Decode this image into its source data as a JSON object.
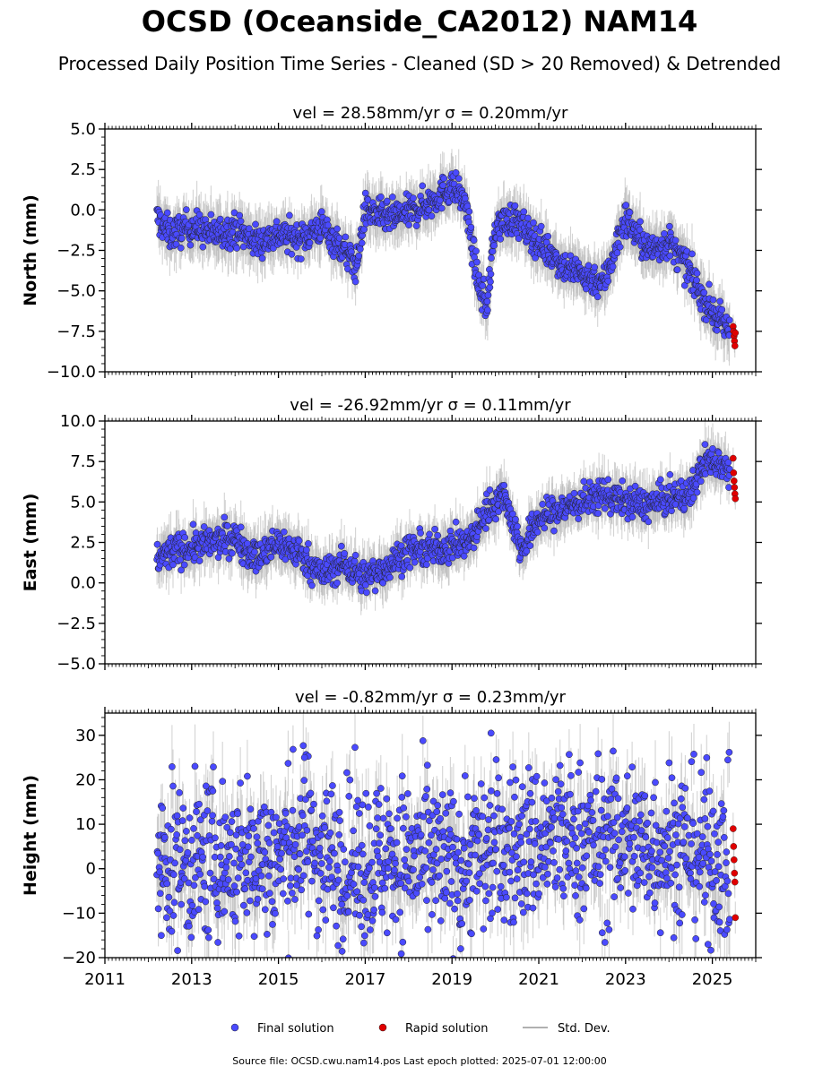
{
  "title": "OCSD (Oceanside_CA2012) NAM14",
  "subtitle": "Processed Daily Position Time Series - Cleaned (SD > 20 Removed) & Detrended",
  "footer": "Source file: OCSD.cwu.nam14.pos  Last epoch plotted: 2025-07-01 12:00:00",
  "colors": {
    "final": "#4a4aff",
    "rapid": "#e00000",
    "stddev": "#b0b0b0",
    "marker_edge": "#222222"
  },
  "legend": [
    {
      "label": "Final solution",
      "marker": "circle",
      "color": "#4a4aff"
    },
    {
      "label": "Rapid solution",
      "marker": "circle",
      "color": "#e00000"
    },
    {
      "label": "Std. Dev.",
      "marker": "line",
      "color": "#b0b0b0"
    }
  ],
  "chart_data": [
    {
      "type": "scatter",
      "panel": "north",
      "title_vel": "vel = 28.58mm/yr",
      "title_sigma": "σ = 0.20mm/yr",
      "ylabel": "North (mm)",
      "ylim": [
        -10,
        5
      ],
      "yticks": [
        5.0,
        2.5,
        0.0,
        -2.5,
        -5.0,
        -7.5,
        -10.0
      ],
      "ytick_labels": [
        "5.0",
        "2.5",
        "0.0",
        "−2.5",
        "−5.0",
        "−7.5",
        "−10.0"
      ],
      "xlim": [
        2011,
        2026
      ],
      "xticks": [
        2011,
        2013,
        2015,
        2017,
        2019,
        2021,
        2023,
        2025
      ],
      "xtick_labels": [],
      "series": [
        {
          "name": "Final solution",
          "x": [
            2012.2,
            2012.5,
            2013.0,
            2013.5,
            2014.0,
            2014.5,
            2015.0,
            2015.5,
            2016.0,
            2016.5,
            2016.8,
            2017.0,
            2017.5,
            2018.0,
            2018.5,
            2019.0,
            2019.3,
            2019.6,
            2019.8,
            2020.0,
            2020.4,
            2020.8,
            2021.2,
            2021.6,
            2022.0,
            2022.5,
            2023.0,
            2023.5,
            2024.0,
            2024.4,
            2024.8,
            2025.2,
            2025.4
          ],
          "y": [
            -0.5,
            -1.5,
            -1.0,
            -1.5,
            -1.2,
            -2.0,
            -1.5,
            -1.8,
            -1.0,
            -2.5,
            -3.5,
            0.0,
            -0.5,
            -0.2,
            0.5,
            1.5,
            0.5,
            -4.5,
            -6.0,
            -1.0,
            -0.5,
            -1.5,
            -2.5,
            -3.5,
            -4.0,
            -4.5,
            -0.5,
            -2.5,
            -2.0,
            -3.5,
            -5.5,
            -7.0,
            -7.5
          ],
          "sd": 1.2
        },
        {
          "name": "Rapid solution",
          "x": [
            2025.48,
            2025.49,
            2025.5,
            2025.51,
            2025.52,
            2025.53
          ],
          "y": [
            -7.2,
            -7.5,
            -7.8,
            -8.1,
            -8.4,
            -7.6
          ]
        }
      ]
    },
    {
      "type": "scatter",
      "panel": "east",
      "title_vel": "vel = -26.92mm/yr",
      "title_sigma": "σ = 0.11mm/yr",
      "ylabel": "East (mm)",
      "ylim": [
        -5,
        10
      ],
      "yticks": [
        10.0,
        7.5,
        5.0,
        2.5,
        0.0,
        -2.5,
        -5.0
      ],
      "ytick_labels": [
        "10.0",
        "7.5",
        "5.0",
        "2.5",
        "0.0",
        "−2.5",
        "−5.0"
      ],
      "xlim": [
        2011,
        2026
      ],
      "xticks": [
        2011,
        2013,
        2015,
        2017,
        2019,
        2021,
        2023,
        2025
      ],
      "xtick_labels": [],
      "series": [
        {
          "name": "Final solution",
          "x": [
            2012.2,
            2012.6,
            2013.0,
            2013.5,
            2014.0,
            2014.5,
            2015.0,
            2015.5,
            2016.0,
            2016.5,
            2017.0,
            2017.5,
            2018.0,
            2018.5,
            2019.0,
            2019.4,
            2019.8,
            2020.2,
            2020.6,
            2021.0,
            2021.5,
            2022.0,
            2022.5,
            2023.0,
            2023.5,
            2024.0,
            2024.5,
            2024.8,
            2025.2,
            2025.4
          ],
          "y": [
            1.5,
            2.0,
            2.2,
            2.5,
            2.8,
            1.5,
            2.5,
            1.8,
            0.5,
            1.2,
            0.3,
            1.0,
            2.0,
            2.0,
            2.3,
            2.5,
            4.5,
            5.5,
            2.0,
            4.0,
            4.5,
            5.0,
            5.5,
            5.0,
            4.8,
            5.2,
            5.5,
            7.5,
            7.5,
            7.0
          ],
          "sd": 1.1
        },
        {
          "name": "Rapid solution",
          "x": [
            2025.48,
            2025.49,
            2025.5,
            2025.51,
            2025.52,
            2025.53
          ],
          "y": [
            7.7,
            6.8,
            6.3,
            5.9,
            5.5,
            5.2
          ]
        }
      ]
    },
    {
      "type": "scatter",
      "panel": "height",
      "title_vel": "vel = -0.82mm/yr",
      "title_sigma": "σ = 0.23mm/yr",
      "ylabel": "Height (mm)",
      "ylim": [
        -20,
        35
      ],
      "yticks": [
        30,
        20,
        10,
        0,
        -10,
        -20
      ],
      "ytick_labels": [
        "30",
        "20",
        "10",
        "0",
        "−10",
        "−20"
      ],
      "xlim": [
        2011,
        2026
      ],
      "xticks": [
        2011,
        2013,
        2015,
        2017,
        2019,
        2021,
        2023,
        2025
      ],
      "xtick_labels": [
        "2011",
        "2013",
        "2015",
        "2017",
        "2019",
        "2021",
        "2023",
        "2025"
      ],
      "series": [
        {
          "name": "Final solution",
          "x": [
            2012.2,
            2012.6,
            2013.0,
            2013.5,
            2014.0,
            2014.5,
            2015.0,
            2015.6,
            2016.0,
            2016.5,
            2017.0,
            2017.5,
            2018.0,
            2018.5,
            2019.0,
            2019.5,
            2020.0,
            2020.5,
            2021.0,
            2021.5,
            2022.0,
            2022.5,
            2023.0,
            2023.5,
            2024.0,
            2024.5,
            2025.0,
            2025.4
          ],
          "y": [
            0.0,
            2.0,
            1.0,
            2.5,
            1.5,
            3.0,
            2.0,
            8.0,
            3.0,
            2.0,
            1.0,
            3.0,
            2.5,
            1.5,
            0.5,
            3.0,
            4.0,
            5.0,
            6.0,
            7.0,
            6.5,
            5.5,
            7.0,
            5.0,
            6.0,
            4.5,
            3.0,
            1.0
          ],
          "sd": 6.0
        },
        {
          "name": "Rapid solution",
          "x": [
            2025.48,
            2025.49,
            2025.5,
            2025.51,
            2025.52,
            2025.53
          ],
          "y": [
            9.0,
            5.0,
            2.0,
            -1.0,
            -3.0,
            -11.0
          ]
        }
      ],
      "outliers": {
        "x": [
          2015.6,
          2019.9,
          2024.9,
          2012.3,
          2019.2
        ],
        "y": [
          25.0,
          30.5,
          -17.0,
          -15.0,
          -18.0
        ]
      }
    }
  ]
}
